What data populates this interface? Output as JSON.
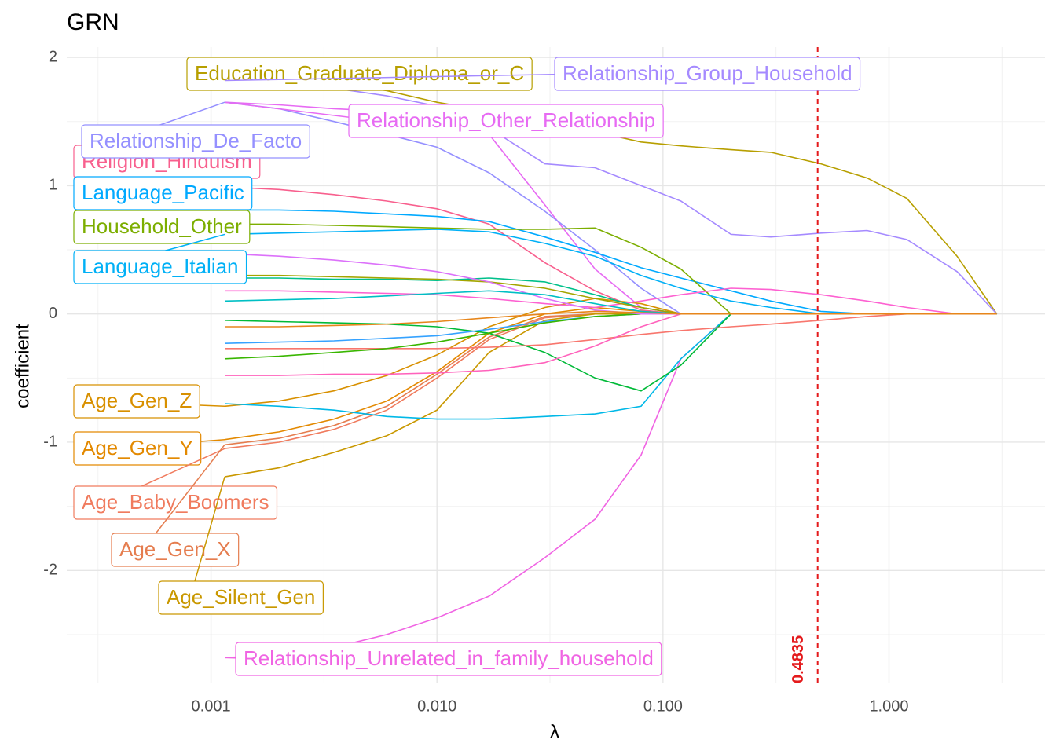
{
  "chart_data": {
    "type": "line",
    "title": "GRN",
    "x_label": "λ",
    "y_label": "coefficient",
    "xscale": "log",
    "grid": true,
    "xlim": [
      0.00023,
      4.9
    ],
    "ylim": [
      -2.88,
      2.08
    ],
    "xticks": [
      {
        "value": 0.001,
        "label": "0.001"
      },
      {
        "value": 0.01,
        "label": "0.010"
      },
      {
        "value": 0.1,
        "label": "0.100"
      },
      {
        "value": 1,
        "label": "1.000"
      }
    ],
    "yticks": [
      -2,
      -1,
      0,
      1,
      2
    ],
    "vline": {
      "x": 0.4835,
      "color": "#e41a1c"
    },
    "x": [
      0.00115,
      0.002,
      0.0035,
      0.006,
      0.01,
      0.017,
      0.03,
      0.05,
      0.08,
      0.12,
      0.2,
      0.3,
      0.5,
      0.8,
      1.2,
      2,
      3
    ],
    "series": [
      {
        "name": "Education_Graduate_Diploma_or_C",
        "color": "#b79f00",
        "values": [
          1.85,
          1.83,
          1.8,
          1.74,
          1.65,
          1.58,
          1.5,
          1.42,
          1.34,
          1.31,
          1.28,
          1.26,
          1.17,
          1.06,
          0.9,
          0.45,
          0
        ]
      },
      {
        "name": "Relationship_Group_Household",
        "color": "#a58aff",
        "values": [
          1.82,
          1.8,
          1.76,
          1.7,
          1.62,
          1.45,
          1.17,
          1.14,
          1.0,
          0.88,
          0.62,
          0.6,
          0.63,
          0.65,
          0.58,
          0.33,
          0
        ]
      },
      {
        "name": "Relationship_Other_Relationship",
        "color": "#e76bf3",
        "values": [
          1.65,
          1.63,
          1.6,
          1.58,
          1.55,
          1.4,
          0.85,
          0.35,
          0.05,
          0,
          0,
          0,
          0,
          0,
          0,
          0,
          0
        ]
      },
      {
        "name": "Relationship_De_Facto",
        "color": "#9590ff",
        "values": [
          1.65,
          1.6,
          1.5,
          1.4,
          1.3,
          1.1,
          0.8,
          0.5,
          0.2,
          0,
          0,
          0,
          0,
          0,
          0,
          0,
          0
        ]
      },
      {
        "name": "Religion_Hinduism",
        "color": "#f8608e",
        "values": [
          0.99,
          0.97,
          0.93,
          0.88,
          0.82,
          0.7,
          0.4,
          0.18,
          0.03,
          0,
          0,
          0,
          0,
          0,
          0,
          0,
          0
        ]
      },
      {
        "name": "Language_Pacific",
        "color": "#00a9ff",
        "values": [
          0.81,
          0.81,
          0.8,
          0.78,
          0.76,
          0.72,
          0.6,
          0.48,
          0.36,
          0.28,
          0.18,
          0.1,
          0.02,
          0,
          0,
          0,
          0
        ]
      },
      {
        "name": "Household_Other",
        "color": "#7cae00",
        "values": [
          0.7,
          0.7,
          0.69,
          0.68,
          0.67,
          0.66,
          0.66,
          0.67,
          0.52,
          0.35,
          0,
          0,
          0,
          0,
          0,
          0,
          0
        ]
      },
      {
        "name": "Language_Italian",
        "color": "#00b0f6",
        "values": [
          0.62,
          0.63,
          0.64,
          0.65,
          0.66,
          0.64,
          0.55,
          0.45,
          0.3,
          0.2,
          0.1,
          0.05,
          0,
          0,
          0,
          0,
          0
        ]
      },
      {
        "name": "Age_Gen_Z",
        "color": "#d89000",
        "values": [
          -0.72,
          -0.68,
          -0.6,
          -0.48,
          -0.32,
          -0.1,
          0.05,
          0.12,
          0.08,
          0,
          0,
          0,
          0,
          0,
          0,
          0,
          0
        ]
      },
      {
        "name": "Age_Gen_Y",
        "color": "#e38900",
        "values": [
          -0.98,
          -0.92,
          -0.82,
          -0.68,
          -0.45,
          -0.15,
          0,
          0.05,
          0.02,
          0,
          0,
          0,
          0,
          0,
          0,
          0,
          0
        ]
      },
      {
        "name": "Age_Baby_Boomers",
        "color": "#f07b5e",
        "values": [
          -1.05,
          -1.0,
          -0.9,
          -0.75,
          -0.5,
          -0.2,
          -0.03,
          0,
          0,
          0,
          0,
          0,
          0,
          0,
          0,
          0,
          0
        ]
      },
      {
        "name": "Age_Gen_X",
        "color": "#e57d4f",
        "values": [
          -1.02,
          -0.97,
          -0.87,
          -0.72,
          -0.47,
          -0.18,
          -0.02,
          0,
          0,
          0,
          0,
          0,
          0,
          0,
          0,
          0,
          0
        ]
      },
      {
        "name": "Age_Silent_Gen",
        "color": "#c99800",
        "values": [
          -1.27,
          -1.2,
          -1.08,
          -0.95,
          -0.75,
          -0.3,
          -0.05,
          0,
          0,
          0,
          0,
          0,
          0,
          0,
          0,
          0,
          0
        ]
      },
      {
        "name": "Relationship_Unrelated_in_family_household",
        "color": "#f064e3",
        "values": [
          -2.68,
          -2.66,
          -2.6,
          -2.5,
          -2.37,
          -2.2,
          -1.9,
          -1.6,
          -1.1,
          -0.35,
          0,
          0,
          0,
          0,
          0,
          0,
          0
        ]
      },
      {
        "color": "#00b8e7",
        "values": [
          -0.7,
          -0.72,
          -0.75,
          -0.8,
          -0.82,
          -0.82,
          -0.8,
          -0.78,
          -0.72,
          -0.35,
          0,
          0,
          0,
          0,
          0,
          0,
          0
        ]
      },
      {
        "color": "#00ba38",
        "values": [
          -0.05,
          -0.06,
          -0.07,
          -0.08,
          -0.1,
          -0.15,
          -0.3,
          -0.5,
          -0.6,
          -0.4,
          0,
          0,
          0,
          0,
          0,
          0,
          0
        ]
      },
      {
        "color": "#f8766d",
        "values": [
          -0.27,
          -0.27,
          -0.27,
          -0.27,
          -0.27,
          -0.26,
          -0.24,
          -0.2,
          -0.16,
          -0.13,
          -0.1,
          -0.08,
          -0.05,
          -0.02,
          0,
          0,
          0
        ]
      },
      {
        "color": "#fd61d1",
        "values": [
          0.18,
          0.18,
          0.17,
          0.16,
          0.15,
          0.12,
          0.08,
          0.05,
          0.1,
          0.15,
          0.2,
          0.19,
          0.15,
          0.1,
          0.05,
          0,
          0
        ]
      },
      {
        "color": "#00c08b",
        "values": [
          0.28,
          0.28,
          0.27,
          0.27,
          0.26,
          0.28,
          0.25,
          0.15,
          0.05,
          0,
          0,
          0,
          0,
          0,
          0,
          0,
          0
        ]
      },
      {
        "color": "#a3a500",
        "values": [
          0.3,
          0.3,
          0.29,
          0.28,
          0.27,
          0.25,
          0.2,
          0.12,
          0.05,
          0,
          0,
          0,
          0,
          0,
          0,
          0,
          0
        ]
      },
      {
        "color": "#ff62bc",
        "values": [
          -0.48,
          -0.48,
          -0.47,
          -0.47,
          -0.46,
          -0.44,
          -0.38,
          -0.25,
          -0.1,
          0,
          0,
          0,
          0,
          0,
          0,
          0,
          0
        ]
      },
      {
        "color": "#35a2ff",
        "values": [
          -0.23,
          -0.22,
          -0.21,
          -0.19,
          -0.17,
          -0.12,
          -0.06,
          -0.02,
          0,
          0,
          0,
          0,
          0,
          0,
          0,
          0,
          0
        ]
      },
      {
        "color": "#39b600",
        "values": [
          -0.35,
          -0.33,
          -0.3,
          -0.27,
          -0.22,
          -0.15,
          -0.07,
          -0.02,
          0,
          0,
          0,
          0,
          0,
          0,
          0,
          0,
          0
        ]
      },
      {
        "color": "#dc71fa",
        "values": [
          0.47,
          0.45,
          0.42,
          0.38,
          0.33,
          0.25,
          0.12,
          0.03,
          0,
          0,
          0,
          0,
          0,
          0,
          0,
          0,
          0
        ]
      },
      {
        "color": "#00bfc4",
        "values": [
          0.1,
          0.11,
          0.12,
          0.14,
          0.16,
          0.18,
          0.15,
          0.08,
          0.02,
          0,
          0,
          0,
          0,
          0,
          0,
          0,
          0
        ]
      },
      {
        "color": "#e7861b",
        "values": [
          -0.1,
          -0.1,
          -0.09,
          -0.08,
          -0.06,
          -0.03,
          0,
          0.02,
          0.01,
          0,
          0,
          0,
          0,
          0,
          0,
          0,
          0
        ]
      }
    ]
  }
}
